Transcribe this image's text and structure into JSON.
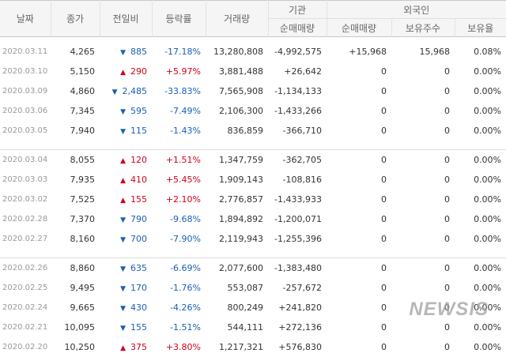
{
  "header": {
    "date": "날짜",
    "close": "종가",
    "change": "전일비",
    "rate": "등락률",
    "volume": "거래량",
    "institution": "기관",
    "foreign": "외국인",
    "inst_net": "순매매량",
    "for_net": "순매매량",
    "for_hold": "보유주수",
    "for_ratio": "보유율"
  },
  "groups": [
    [
      {
        "date": "2020.03.11",
        "close": "4,265",
        "dir": "down",
        "change": "885",
        "rate": "-17.18%",
        "volume": "13,280,808",
        "inst": "-4,992,575",
        "fnet": "+15,968",
        "fhold": "15,968",
        "fratio": "0.08%"
      },
      {
        "date": "2020.03.10",
        "close": "5,150",
        "dir": "up",
        "change": "290",
        "rate": "+5.97%",
        "volume": "3,881,488",
        "inst": "+26,642",
        "fnet": "0",
        "fhold": "0",
        "fratio": "0.00%"
      },
      {
        "date": "2020.03.09",
        "close": "4,860",
        "dir": "down",
        "change": "2,485",
        "rate": "-33.83%",
        "volume": "7,565,908",
        "inst": "-1,134,133",
        "fnet": "0",
        "fhold": "0",
        "fratio": "0.00%"
      },
      {
        "date": "2020.03.06",
        "close": "7,345",
        "dir": "down",
        "change": "595",
        "rate": "-7.49%",
        "volume": "2,106,300",
        "inst": "-1,433,266",
        "fnet": "0",
        "fhold": "0",
        "fratio": "0.00%"
      },
      {
        "date": "2020.03.05",
        "close": "7,940",
        "dir": "down",
        "change": "115",
        "rate": "-1.43%",
        "volume": "836,859",
        "inst": "-366,710",
        "fnet": "0",
        "fhold": "0",
        "fratio": "0.00%"
      }
    ],
    [
      {
        "date": "2020.03.04",
        "close": "8,055",
        "dir": "up",
        "change": "120",
        "rate": "+1.51%",
        "volume": "1,347,759",
        "inst": "-362,705",
        "fnet": "0",
        "fhold": "0",
        "fratio": "0.00%"
      },
      {
        "date": "2020.03.03",
        "close": "7,935",
        "dir": "up",
        "change": "410",
        "rate": "+5.45%",
        "volume": "1,909,143",
        "inst": "-108,816",
        "fnet": "0",
        "fhold": "0",
        "fratio": "0.00%"
      },
      {
        "date": "2020.03.02",
        "close": "7,525",
        "dir": "up",
        "change": "155",
        "rate": "+2.10%",
        "volume": "2,776,857",
        "inst": "-1,433,933",
        "fnet": "0",
        "fhold": "0",
        "fratio": "0.00%"
      },
      {
        "date": "2020.02.28",
        "close": "7,370",
        "dir": "down",
        "change": "790",
        "rate": "-9.68%",
        "volume": "1,894,892",
        "inst": "-1,200,071",
        "fnet": "0",
        "fhold": "0",
        "fratio": "0.00%"
      },
      {
        "date": "2020.02.27",
        "close": "8,160",
        "dir": "down",
        "change": "700",
        "rate": "-7.90%",
        "volume": "2,119,943",
        "inst": "-1,255,396",
        "fnet": "0",
        "fhold": "0",
        "fratio": "0.00%"
      }
    ],
    [
      {
        "date": "2020.02.26",
        "close": "8,860",
        "dir": "down",
        "change": "635",
        "rate": "-6.69%",
        "volume": "2,077,600",
        "inst": "-1,383,480",
        "fnet": "0",
        "fhold": "0",
        "fratio": "0.00%"
      },
      {
        "date": "2020.02.25",
        "close": "9,495",
        "dir": "down",
        "change": "170",
        "rate": "-1.76%",
        "volume": "553,087",
        "inst": "-257,672",
        "fnet": "0",
        "fhold": "0",
        "fratio": "0.00%"
      },
      {
        "date": "2020.02.24",
        "close": "9,665",
        "dir": "down",
        "change": "430",
        "rate": "-4.26%",
        "volume": "800,249",
        "inst": "+241,820",
        "fnet": "0",
        "fhold": "0",
        "fratio": "0.00%"
      },
      {
        "date": "2020.02.21",
        "close": "10,095",
        "dir": "down",
        "change": "155",
        "rate": "-1.51%",
        "volume": "544,111",
        "inst": "+272,136",
        "fnet": "0",
        "fhold": "0",
        "fratio": "0.00%"
      },
      {
        "date": "2020.02.20",
        "close": "10,250",
        "dir": "up",
        "change": "375",
        "rate": "+3.80%",
        "volume": "1,217,321",
        "inst": "+576,830",
        "fnet": "0",
        "fhold": "0",
        "fratio": "0.00%"
      }
    ]
  ],
  "colors": {
    "up": "#d0021b",
    "down": "#1a5fb4"
  },
  "icons": {
    "up": "triangle-up-icon",
    "down": "triangle-down-icon"
  },
  "watermark": "NEWSIS"
}
